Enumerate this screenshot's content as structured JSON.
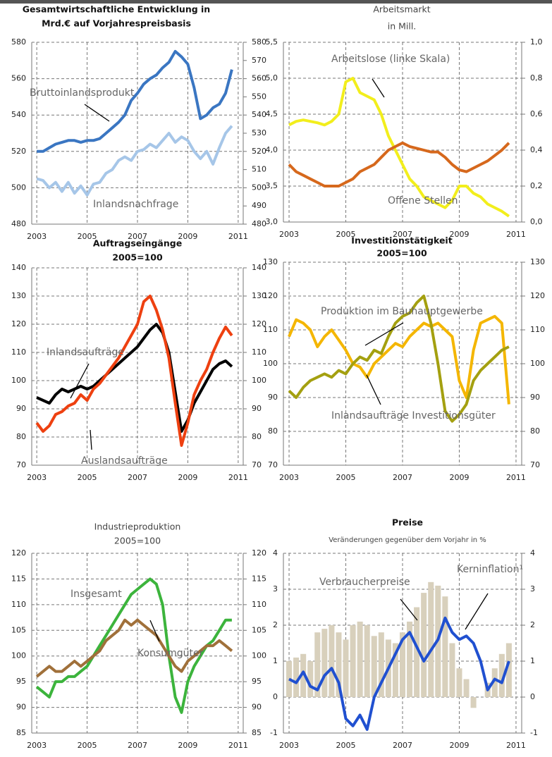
{
  "chart_data": [
    {
      "type": "line",
      "title": "Gesamtwirtschaftliche Entwicklung  in",
      "subtitle": "Mrd.€ auf Vorjahrespreisbasis",
      "x": [
        2003,
        2003.25,
        2003.5,
        2003.75,
        2004,
        2004.25,
        2004.5,
        2004.75,
        2005,
        2005.25,
        2005.5,
        2005.75,
        2006,
        2006.25,
        2006.5,
        2006.75,
        2007,
        2007.25,
        2007.5,
        2007.75,
        2008,
        2008.25,
        2008.5,
        2008.75,
        2009,
        2009.25,
        2009.5,
        2009.75,
        2010,
        2010.25,
        2010.5,
        2010.75
      ],
      "series": [
        {
          "name": "Bruttoinlandsprodukt",
          "color": "#3a76c2",
          "values": [
            520,
            520,
            522,
            524,
            525,
            526,
            526,
            525,
            526,
            526,
            527,
            530,
            533,
            536,
            540,
            548,
            552,
            557,
            560,
            562,
            566,
            569,
            575,
            572,
            568,
            555,
            538,
            540,
            544,
            546,
            552,
            565
          ]
        },
        {
          "name": "Inlandsnachfrage",
          "color": "#a6c6e8",
          "values": [
            505,
            504,
            500,
            503,
            498,
            503,
            497,
            501,
            496,
            502,
            503,
            508,
            510,
            515,
            517,
            515,
            520,
            521,
            524,
            522,
            526,
            530,
            525,
            528,
            526,
            520,
            516,
            520,
            513,
            522,
            530,
            534
          ]
        }
      ],
      "xlim": [
        2002.8,
        2011.2
      ],
      "xticks": [
        2003,
        2005,
        2007,
        2009,
        2011
      ],
      "ylim": [
        480,
        580
      ],
      "yticks": [
        480,
        500,
        520,
        540,
        560,
        580
      ],
      "y2lim": [
        480,
        580
      ],
      "y2ticks": [
        480,
        490,
        500,
        510,
        520,
        530,
        540,
        550,
        560,
        570,
        580
      ],
      "grid": true
    },
    {
      "type": "line",
      "title": "Arbeitsmarkt",
      "subtitle": "in Mill.",
      "x": [
        2003,
        2003.25,
        2003.5,
        2003.75,
        2004,
        2004.25,
        2004.5,
        2004.75,
        2005,
        2005.25,
        2005.5,
        2005.75,
        2006,
        2006.25,
        2006.5,
        2006.75,
        2007,
        2007.25,
        2007.5,
        2007.75,
        2008,
        2008.25,
        2008.5,
        2008.75,
        2009,
        2009.25,
        2009.5,
        2009.75,
        2010,
        2010.25,
        2010.5,
        2010.75
      ],
      "series": [
        {
          "name": "Arbeitslose (linke Skala)",
          "color": "#f2ee1c",
          "values": [
            4.35,
            4.4,
            4.42,
            4.4,
            4.38,
            4.35,
            4.4,
            4.5,
            4.95,
            5.0,
            4.8,
            4.75,
            4.7,
            4.5,
            4.2,
            4.0,
            3.8,
            3.6,
            3.5,
            3.35,
            3.3,
            3.25,
            3.2,
            3.3,
            3.5,
            3.5,
            3.4,
            3.35,
            3.25,
            3.2,
            3.15,
            3.08
          ]
        },
        {
          "name": "Offene Stellen",
          "color": "#d6681c",
          "axis": "y2",
          "values": [
            0.32,
            0.28,
            0.26,
            0.24,
            0.22,
            0.2,
            0.2,
            0.2,
            0.22,
            0.24,
            0.28,
            0.3,
            0.32,
            0.36,
            0.4,
            0.42,
            0.44,
            0.42,
            0.41,
            0.4,
            0.39,
            0.39,
            0.36,
            0.32,
            0.29,
            0.28,
            0.3,
            0.32,
            0.34,
            0.37,
            0.4,
            0.44
          ]
        }
      ],
      "xlim": [
        2002.8,
        2011.2
      ],
      "xticks": [
        2003,
        2005,
        2007,
        2009,
        2011
      ],
      "ylim": [
        3,
        5.5
      ],
      "yticks": [
        {
          "value": 3,
          "label": "3,0"
        },
        {
          "value": 3.5,
          "label": "3,5"
        },
        {
          "value": 4,
          "label": "4,0"
        },
        {
          "value": 4.5,
          "label": "4,5"
        },
        {
          "value": 5,
          "label": "5,0"
        },
        {
          "value": 5.5,
          "label": "5,5"
        }
      ],
      "y2lim": [
        0,
        1
      ],
      "y2ticks": [
        {
          "value": 0,
          "label": "0,0"
        },
        {
          "value": 0.2,
          "label": "0,2"
        },
        {
          "value": 0.4,
          "label": "0,4"
        },
        {
          "value": 0.6,
          "label": "0,6"
        },
        {
          "value": 0.8,
          "label": "0,8"
        },
        {
          "value": 1,
          "label": "1,0"
        }
      ],
      "grid": true
    },
    {
      "type": "line",
      "title": "Auftragseingänge",
      "subtitle": "2005=100",
      "x": [
        2003,
        2003.25,
        2003.5,
        2003.75,
        2004,
        2004.25,
        2004.5,
        2004.75,
        2005,
        2005.25,
        2005.5,
        2005.75,
        2006,
        2006.25,
        2006.5,
        2006.75,
        2007,
        2007.25,
        2007.5,
        2007.75,
        2008,
        2008.25,
        2008.5,
        2008.75,
        2009,
        2009.25,
        2009.5,
        2009.75,
        2010,
        2010.25,
        2010.5,
        2010.75
      ],
      "series": [
        {
          "name": "Inlandsaufträge",
          "color": "#000000",
          "values": [
            94,
            93,
            92,
            95,
            97,
            96,
            97,
            98,
            97,
            98,
            100,
            102,
            104,
            106,
            108,
            110,
            112,
            115,
            118,
            120,
            117,
            110,
            96,
            82,
            86,
            92,
            96,
            100,
            104,
            106,
            107,
            105
          ]
        },
        {
          "name": "Auslandsaufträge",
          "color": "#ee4010",
          "values": [
            85,
            82,
            84,
            88,
            89,
            91,
            92,
            95,
            93,
            97,
            99,
            102,
            105,
            108,
            112,
            116,
            120,
            128,
            130,
            125,
            118,
            108,
            92,
            77,
            85,
            95,
            100,
            104,
            110,
            115,
            119,
            116
          ]
        }
      ],
      "xlim": [
        2002.8,
        2011.2
      ],
      "xticks": [
        2003,
        2005,
        2007,
        2009,
        2011
      ],
      "ylim": [
        70,
        140
      ],
      "yticks": [
        70,
        80,
        90,
        100,
        110,
        120,
        130,
        140
      ],
      "y2lim": [
        70,
        140
      ],
      "y2ticks": [
        70,
        80,
        90,
        100,
        110,
        120,
        130,
        140
      ],
      "grid": true
    },
    {
      "type": "line",
      "title": "Investitionstätigkeit",
      "subtitle": "2005=100",
      "x": [
        2003,
        2003.25,
        2003.5,
        2003.75,
        2004,
        2004.25,
        2004.5,
        2004.75,
        2005,
        2005.25,
        2005.5,
        2005.75,
        2006,
        2006.25,
        2006.5,
        2006.75,
        2007,
        2007.25,
        2007.5,
        2007.75,
        2008,
        2008.25,
        2008.5,
        2008.75,
        2009,
        2009.25,
        2009.5,
        2009.75,
        2010,
        2010.25,
        2010.5,
        2010.75
      ],
      "series": [
        {
          "name": "Produktion im Bauhauptgewerbe",
          "color": "#f4b600",
          "values": [
            108,
            113,
            112,
            110,
            105,
            108,
            110,
            107,
            104,
            100,
            99,
            96,
            100,
            102,
            104,
            106,
            105,
            108,
            110,
            112,
            111,
            112,
            110,
            108,
            95,
            90,
            104,
            112,
            113,
            114,
            112,
            88
          ]
        },
        {
          "name": "Inlandsaufträge Investitionsgüter",
          "color": "#a4a010",
          "values": [
            92,
            90,
            93,
            95,
            96,
            97,
            96,
            98,
            97,
            100,
            102,
            101,
            104,
            103,
            108,
            112,
            114,
            115,
            118,
            120,
            112,
            100,
            86,
            83,
            85,
            88,
            95,
            98,
            100,
            102,
            104,
            105
          ]
        }
      ],
      "xlim": [
        2002.8,
        2011.2
      ],
      "xticks": [
        2003,
        2005,
        2007,
        2009,
        2011
      ],
      "ylim": [
        70,
        130
      ],
      "yticks": [
        70,
        80,
        90,
        100,
        110,
        120,
        130
      ],
      "y2lim": [
        70,
        130
      ],
      "y2ticks": [
        70,
        80,
        90,
        100,
        110,
        120,
        130
      ],
      "grid": true
    },
    {
      "type": "line",
      "title": "Industrieproduktion",
      "subtitle": "2005=100",
      "x": [
        2003,
        2003.25,
        2003.5,
        2003.75,
        2004,
        2004.25,
        2004.5,
        2004.75,
        2005,
        2005.25,
        2005.5,
        2005.75,
        2006,
        2006.25,
        2006.5,
        2006.75,
        2007,
        2007.25,
        2007.5,
        2007.75,
        2008,
        2008.25,
        2008.5,
        2008.75,
        2009,
        2009.25,
        2009.5,
        2009.75,
        2010,
        2010.25,
        2010.5,
        2010.75
      ],
      "series": [
        {
          "name": "Insgesamt",
          "color": "#3cb43c",
          "values": [
            94,
            93,
            92,
            95,
            95,
            96,
            96,
            97,
            98,
            100,
            102,
            104,
            106,
            108,
            110,
            112,
            113,
            114,
            115,
            114,
            110,
            100,
            92,
            89,
            95,
            98,
            100,
            102,
            103,
            105,
            107,
            107
          ]
        },
        {
          "name": "Konsumgüter",
          "color": "#a0703a",
          "values": [
            96,
            97,
            98,
            97,
            97,
            98,
            99,
            98,
            99,
            100,
            101,
            103,
            104,
            105,
            107,
            106,
            107,
            106,
            105,
            104,
            102,
            100,
            98,
            97,
            99,
            100,
            101,
            102,
            102,
            103,
            102,
            101
          ]
        }
      ],
      "xlim": [
        2002.8,
        2011.2
      ],
      "xticks": [
        2003,
        2005,
        2007,
        2009,
        2011
      ],
      "ylim": [
        85,
        120
      ],
      "yticks": [
        85,
        90,
        95,
        100,
        105,
        110,
        115,
        120
      ],
      "y2lim": [
        85,
        120
      ],
      "y2ticks": [
        85,
        90,
        95,
        100,
        105,
        110,
        115,
        120
      ],
      "grid": true
    },
    {
      "type": "combo",
      "title": "Preise",
      "subtitle": "Veränderungen gegenüber dem Vorjahr in %",
      "x": [
        2003,
        2003.25,
        2003.5,
        2003.75,
        2004,
        2004.25,
        2004.5,
        2004.75,
        2005,
        2005.25,
        2005.5,
        2005.75,
        2006,
        2006.25,
        2006.5,
        2006.75,
        2007,
        2007.25,
        2007.5,
        2007.75,
        2008,
        2008.25,
        2008.5,
        2008.75,
        2009,
        2009.25,
        2009.5,
        2009.75,
        2010,
        2010.25,
        2010.5,
        2010.75
      ],
      "series": [
        {
          "name": "Verbraucherpreise",
          "color": "#d8d0bc",
          "type": "bar",
          "values": [
            1.0,
            1.1,
            1.2,
            1.0,
            1.8,
            1.9,
            2.0,
            1.8,
            1.6,
            2.0,
            2.1,
            2.0,
            1.7,
            1.8,
            1.6,
            1.5,
            1.8,
            2.1,
            2.5,
            2.9,
            3.2,
            3.1,
            2.8,
            1.5,
            0.8,
            0.5,
            -0.3,
            0.0,
            0.4,
            0.8,
            1.2,
            1.5
          ]
        },
        {
          "name": "Kerninflation¹",
          "color": "#2050d0",
          "type": "line",
          "values": [
            0.5,
            0.4,
            0.7,
            0.3,
            0.2,
            0.6,
            0.8,
            0.4,
            -0.6,
            -0.8,
            -0.5,
            -0.9,
            0.0,
            0.4,
            0.8,
            1.2,
            1.6,
            1.8,
            1.4,
            1.0,
            1.3,
            1.6,
            2.2,
            1.8,
            1.6,
            1.7,
            1.5,
            1.0,
            0.2,
            0.5,
            0.4,
            1.0
          ]
        }
      ],
      "xlim": [
        2002.8,
        2011.2
      ],
      "xticks": [
        2003,
        2005,
        2007,
        2009,
        2011
      ],
      "ylim": [
        -1,
        4
      ],
      "yticks": [
        -1,
        0,
        1,
        2,
        3,
        4
      ],
      "y2lim": [
        -1,
        4
      ],
      "y2ticks": [
        -1,
        0,
        1,
        2,
        3,
        4
      ],
      "grid": true
    }
  ]
}
